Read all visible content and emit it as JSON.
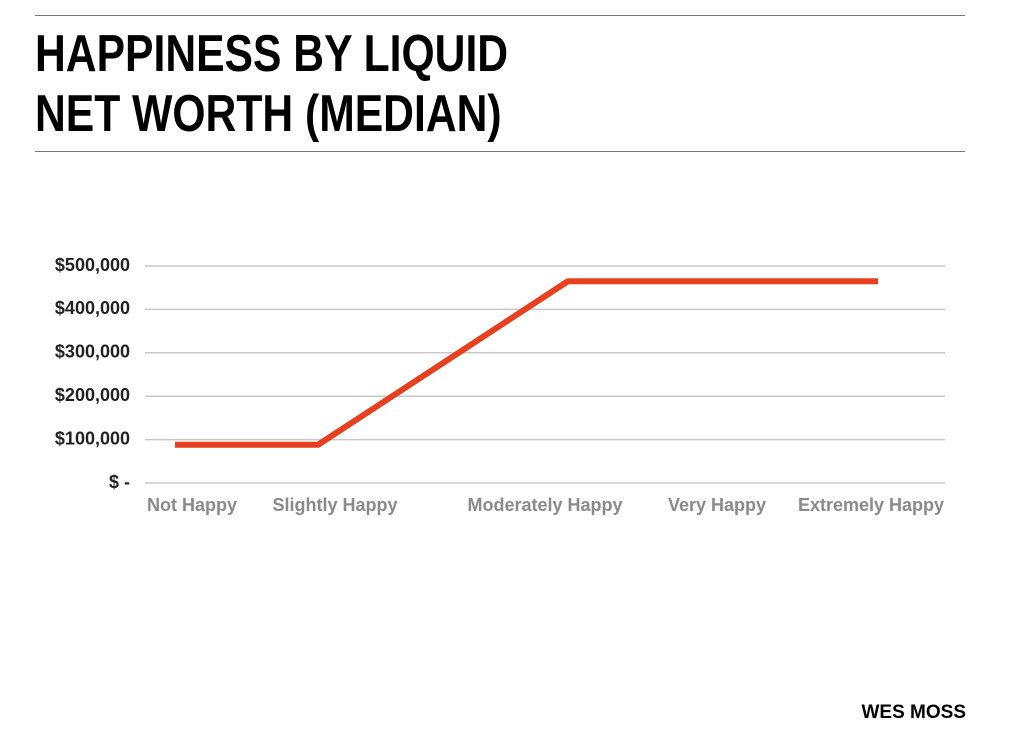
{
  "chart_data": {
    "type": "line",
    "title": "HAPPINESS BY LIQUID NET WORTH (MEDIAN)",
    "source": "WES MOSS",
    "categories": [
      "Not Happy",
      "Slightly Happy",
      "Moderately Happy",
      "Very Happy",
      "Extremely Happy"
    ],
    "series": [
      {
        "name": "Median liquid net worth",
        "color": "#e8401e",
        "values": [
          88000,
          88000,
          465000,
          465000,
          465000
        ]
      }
    ],
    "ylim": [
      0,
      500000
    ],
    "yticks": [
      {
        "value": 0,
        "label": "$ -"
      },
      {
        "value": 100000,
        "label": "$100,000"
      },
      {
        "value": 200000,
        "label": "$200,000"
      },
      {
        "value": 300000,
        "label": "$300,000"
      },
      {
        "value": 400000,
        "label": "$400,000"
      },
      {
        "value": 500000,
        "label": "$500,000"
      }
    ],
    "grid": true
  }
}
